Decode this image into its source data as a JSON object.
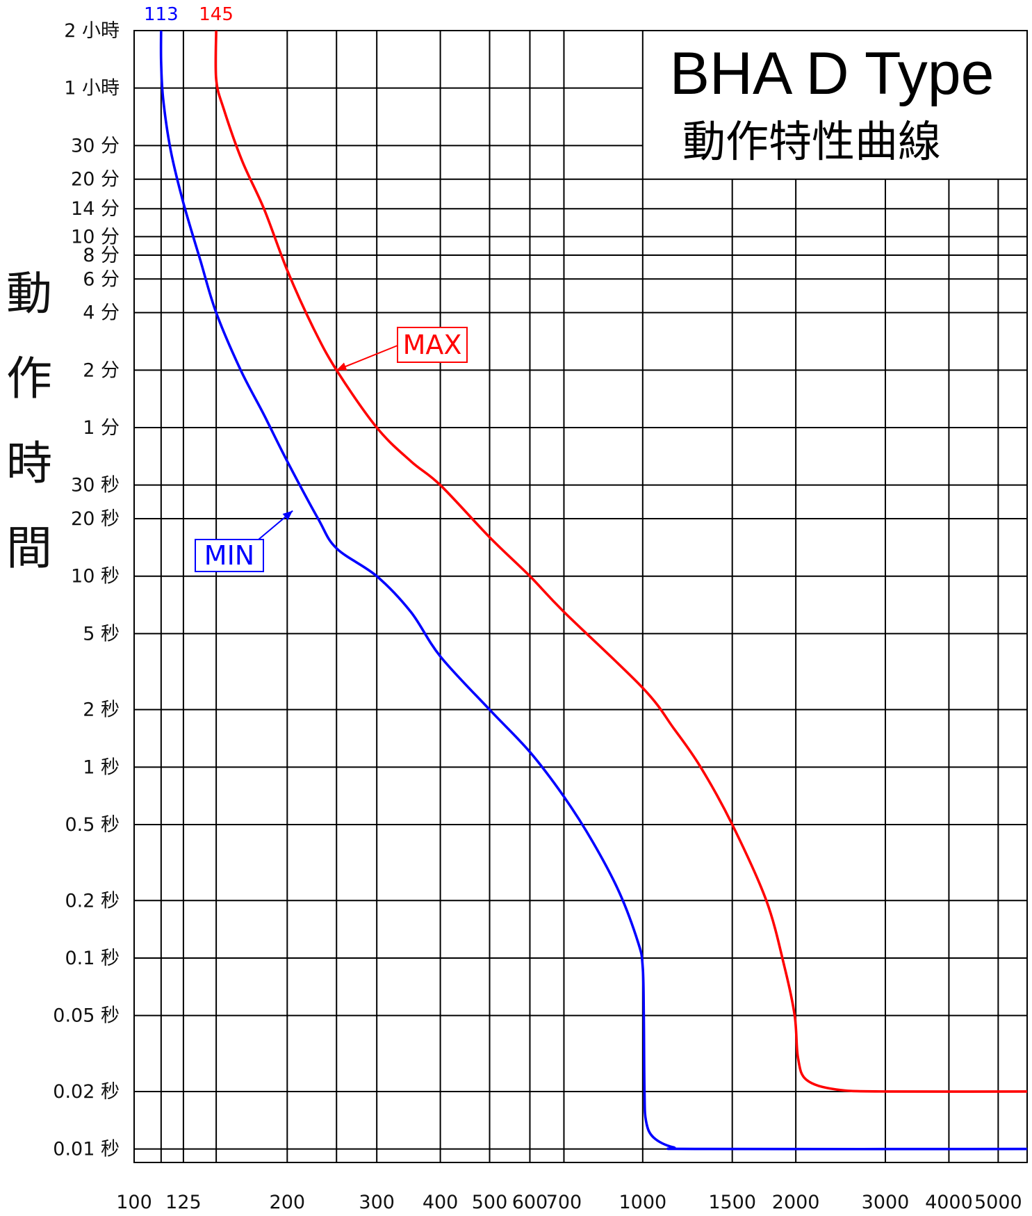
{
  "chart_data": {
    "type": "line",
    "title": "BHA D Type",
    "subtitle": "動作特性曲線",
    "ylabel": "動作時間",
    "xlabel": "",
    "x_scale": "log",
    "y_scale": "log",
    "xlim": [
      100,
      5700
    ],
    "ylim": [
      0.0085,
      7200
    ],
    "x_ticks": [
      {
        "value": 100,
        "label": "100"
      },
      {
        "value": 125,
        "label": "125"
      },
      {
        "value": 200,
        "label": "200"
      },
      {
        "value": 300,
        "label": "300"
      },
      {
        "value": 400,
        "label": "400"
      },
      {
        "value": 500,
        "label": "500"
      },
      {
        "value": 600,
        "label": "600"
      },
      {
        "value": 700,
        "label": "700"
      },
      {
        "value": 1000,
        "label": "1000"
      },
      {
        "value": 1500,
        "label": "1500"
      },
      {
        "value": 2000,
        "label": "2000"
      },
      {
        "value": 3000,
        "label": "3000"
      },
      {
        "value": 4000,
        "label": "4000"
      },
      {
        "value": 5000,
        "label": "5000"
      }
    ],
    "x_gridlines": [
      113,
      125,
      145,
      200,
      250,
      300,
      400,
      500,
      600,
      700,
      1000,
      1500,
      2000,
      3000,
      4000,
      5000
    ],
    "y_ticks": [
      {
        "value": 7200,
        "label": "2 小時"
      },
      {
        "value": 3600,
        "label": "1 小時"
      },
      {
        "value": 1800,
        "label": "30 分"
      },
      {
        "value": 1200,
        "label": "20 分"
      },
      {
        "value": 840,
        "label": "14 分"
      },
      {
        "value": 600,
        "label": "10 分"
      },
      {
        "value": 480,
        "label": "8 分"
      },
      {
        "value": 360,
        "label": "6 分"
      },
      {
        "value": 240,
        "label": "4 分"
      },
      {
        "value": 120,
        "label": "2 分"
      },
      {
        "value": 60,
        "label": "1 分"
      },
      {
        "value": 30,
        "label": "30 秒"
      },
      {
        "value": 20,
        "label": "20 秒"
      },
      {
        "value": 10,
        "label": "10 秒"
      },
      {
        "value": 5,
        "label": "5 秒"
      },
      {
        "value": 2,
        "label": "2 秒"
      },
      {
        "value": 1,
        "label": "1 秒"
      },
      {
        "value": 0.5,
        "label": "0.5 秒"
      },
      {
        "value": 0.2,
        "label": "0.2 秒"
      },
      {
        "value": 0.1,
        "label": "0.1 秒"
      },
      {
        "value": 0.05,
        "label": "0.05 秒"
      },
      {
        "value": 0.02,
        "label": "0.02 秒"
      },
      {
        "value": 0.01,
        "label": "0.01 秒"
      }
    ],
    "series": [
      {
        "name": "MAX",
        "color": "#ff0000",
        "start_label": "145",
        "points": [
          [
            145,
            7200
          ],
          [
            145,
            4000
          ],
          [
            150,
            2800
          ],
          [
            163,
            1500
          ],
          [
            180,
            840
          ],
          [
            200,
            400
          ],
          [
            225,
            200
          ],
          [
            250,
            120
          ],
          [
            300,
            60
          ],
          [
            350,
            40
          ],
          [
            400,
            30
          ],
          [
            500,
            16
          ],
          [
            600,
            10
          ],
          [
            700,
            6.5
          ],
          [
            1000,
            2.6
          ],
          [
            1150,
            1.6
          ],
          [
            1300,
            1.0
          ],
          [
            1500,
            0.5
          ],
          [
            1750,
            0.2
          ],
          [
            1900,
            0.09
          ],
          [
            1990,
            0.05
          ],
          [
            2020,
            0.03
          ],
          [
            2100,
            0.023
          ],
          [
            2400,
            0.0205
          ],
          [
            3000,
            0.02
          ],
          [
            5700,
            0.02
          ]
        ]
      },
      {
        "name": "MIN",
        "color": "#0000ff",
        "start_label": "113",
        "points": [
          [
            113,
            7200
          ],
          [
            113,
            5000
          ],
          [
            114,
            3200
          ],
          [
            118,
            1700
          ],
          [
            125,
            900
          ],
          [
            135,
            450
          ],
          [
            145,
            240
          ],
          [
            162,
            120
          ],
          [
            180,
            70
          ],
          [
            200,
            40
          ],
          [
            230,
            20
          ],
          [
            250,
            14
          ],
          [
            300,
            10
          ],
          [
            350,
            6.5
          ],
          [
            400,
            3.8
          ],
          [
            500,
            2.0
          ],
          [
            600,
            1.2
          ],
          [
            700,
            0.7
          ],
          [
            800,
            0.4
          ],
          [
            900,
            0.22
          ],
          [
            980,
            0.12
          ],
          [
            1000,
            0.09
          ],
          [
            1005,
            0.05
          ],
          [
            1008,
            0.02
          ],
          [
            1015,
            0.014
          ],
          [
            1050,
            0.0115
          ],
          [
            1150,
            0.0102
          ],
          [
            1300,
            0.01
          ],
          [
            5700,
            0.01
          ]
        ]
      }
    ],
    "annotations": [
      {
        "text": "MAX",
        "color": "#ff0000",
        "points_to": [
          250,
          120
        ]
      },
      {
        "text": "MIN",
        "color": "#0000ff",
        "points_to": [
          205,
          22
        ]
      }
    ],
    "grid": true,
    "legend": "none"
  }
}
